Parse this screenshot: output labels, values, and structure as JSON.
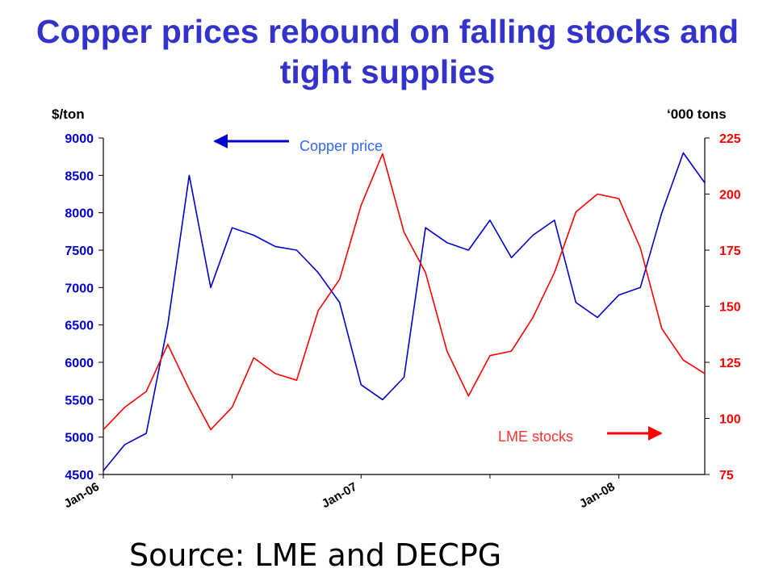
{
  "title": "Copper prices rebound on falling stocks and tight supplies",
  "source": "Source: LME and DECPG",
  "chart_data": {
    "type": "line",
    "title": "Copper prices rebound on falling stocks and tight supplies",
    "y_left_label": "$/ton",
    "y_right_label": "‘000 tons",
    "y_left_lim": [
      4500,
      9000
    ],
    "y_right_lim": [
      75,
      225
    ],
    "y_left_ticks": [
      4500,
      5000,
      5500,
      6000,
      6500,
      7000,
      7500,
      8000,
      8500,
      9000
    ],
    "y_right_ticks": [
      75,
      100,
      125,
      150,
      175,
      200,
      225
    ],
    "x_tick_labels": [
      "Jan-06",
      "Jan-07",
      "Jan-08"
    ],
    "x_range": [
      "2006-01",
      "2008-05"
    ],
    "grid": false,
    "annotations": [
      "Copper price",
      "LME stocks"
    ],
    "series": [
      {
        "name": "Copper price",
        "axis": "left",
        "color": "#0000cc",
        "x": [
          "2006-01",
          "2006-02",
          "2006-03",
          "2006-04",
          "2006-05",
          "2006-06",
          "2006-07",
          "2006-08",
          "2006-09",
          "2006-10",
          "2006-11",
          "2006-12",
          "2007-01",
          "2007-02",
          "2007-03",
          "2007-04",
          "2007-05",
          "2007-06",
          "2007-07",
          "2007-08",
          "2007-09",
          "2007-10",
          "2007-11",
          "2007-12",
          "2008-01",
          "2008-02",
          "2008-03",
          "2008-04",
          "2008-05"
        ],
        "values": [
          4550,
          4900,
          5050,
          6500,
          8500,
          7000,
          7800,
          7700,
          7550,
          7500,
          7200,
          6800,
          5700,
          5500,
          5800,
          7800,
          7600,
          7500,
          7900,
          7400,
          7700,
          7900,
          6800,
          6600,
          6900,
          7000,
          8000,
          8800,
          8400
        ]
      },
      {
        "name": "LME stocks",
        "axis": "right",
        "color": "#ff0000",
        "x": [
          "2006-01",
          "2006-02",
          "2006-03",
          "2006-04",
          "2006-05",
          "2006-06",
          "2006-07",
          "2006-08",
          "2006-09",
          "2006-10",
          "2006-11",
          "2006-12",
          "2007-01",
          "2007-02",
          "2007-03",
          "2007-04",
          "2007-05",
          "2007-06",
          "2007-07",
          "2007-08",
          "2007-09",
          "2007-10",
          "2007-11",
          "2007-12",
          "2008-01",
          "2008-02",
          "2008-03",
          "2008-04",
          "2008-05"
        ],
        "values": [
          95,
          105,
          112,
          133,
          113,
          95,
          105,
          127,
          120,
          117,
          148,
          162,
          195,
          218,
          183,
          165,
          130,
          110,
          128,
          130,
          145,
          165,
          192,
          200,
          198,
          176,
          140,
          126,
          120
        ]
      }
    ]
  }
}
